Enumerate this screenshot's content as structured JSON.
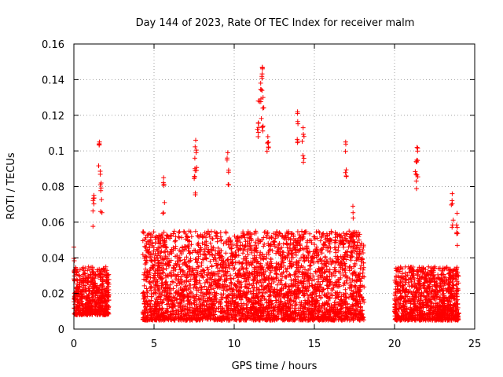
{
  "chart_data": {
    "type": "scatter",
    "title": "Day 144 of 2023, Rate Of TEC Index for receiver malm",
    "xlabel": "GPS time / hours",
    "ylabel": "ROTI / TECUs",
    "xlim": [
      0,
      25
    ],
    "ylim": [
      0,
      0.16
    ],
    "xticks": [
      0,
      5,
      10,
      15,
      20,
      25
    ],
    "yticks": [
      0,
      0.02,
      0.04,
      0.06,
      0.08,
      0.1,
      0.12,
      0.14,
      0.16
    ],
    "xtick_labels": [
      "0",
      "5",
      "10",
      "15",
      "20",
      "25"
    ],
    "ytick_labels": [
      "0",
      "0.02",
      "0.04",
      "0.06",
      "0.08",
      "0.1",
      "0.12",
      "0.14",
      "0.16"
    ],
    "grid": true,
    "marker": "+",
    "marker_color": "#ff0000",
    "data_segments": [
      {
        "x_range": [
          0.0,
          2.2
        ],
        "y_typical": [
          0.008,
          0.035
        ]
      },
      {
        "x_range": [
          4.3,
          18.1
        ],
        "y_typical": [
          0.005,
          0.055
        ]
      },
      {
        "x_range": [
          20.0,
          24.0
        ],
        "y_typical": [
          0.005,
          0.035
        ]
      }
    ],
    "notable_points": [
      {
        "x": 0.0,
        "y": 0.046
      },
      {
        "x": 1.25,
        "y": 0.075
      },
      {
        "x": 1.6,
        "y": 0.105
      },
      {
        "x": 1.7,
        "y": 0.082
      },
      {
        "x": 5.6,
        "y": 0.085
      },
      {
        "x": 7.6,
        "y": 0.106
      },
      {
        "x": 7.55,
        "y": 0.09
      },
      {
        "x": 9.6,
        "y": 0.099
      },
      {
        "x": 11.5,
        "y": 0.128
      },
      {
        "x": 11.65,
        "y": 0.138
      },
      {
        "x": 11.75,
        "y": 0.147
      },
      {
        "x": 11.8,
        "y": 0.13
      },
      {
        "x": 12.1,
        "y": 0.108
      },
      {
        "x": 13.95,
        "y": 0.122
      },
      {
        "x": 14.3,
        "y": 0.113
      },
      {
        "x": 16.95,
        "y": 0.105
      },
      {
        "x": 17.4,
        "y": 0.069
      },
      {
        "x": 21.4,
        "y": 0.102
      },
      {
        "x": 21.35,
        "y": 0.094
      },
      {
        "x": 23.6,
        "y": 0.076
      },
      {
        "x": 23.9,
        "y": 0.065
      }
    ]
  }
}
